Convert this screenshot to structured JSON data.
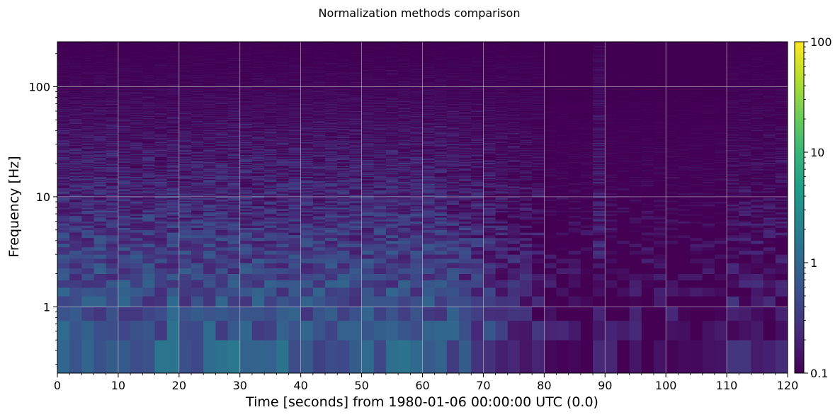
{
  "chart_data": {
    "type": "heatmap",
    "title": "Normalization methods comparison",
    "xlabel": "Time [seconds] from 1980-01-06 00:00:00 UTC (0.0)",
    "ylabel": "Frequency [Hz]",
    "xlim": [
      0,
      120
    ],
    "ylim": [
      0.25,
      256
    ],
    "yscale": "log",
    "x_ticks": [
      0,
      10,
      20,
      30,
      40,
      50,
      60,
      70,
      80,
      90,
      100,
      110,
      120
    ],
    "x_tick_labels": [
      "0",
      "10",
      "20",
      "30",
      "40",
      "50",
      "60",
      "70",
      "80",
      "90",
      "100",
      "110",
      "120"
    ],
    "y_ticks": [
      1,
      10,
      100
    ],
    "y_tick_labels": [
      "1",
      "10",
      "100"
    ],
    "grid": true,
    "colormap": "viridis",
    "color_scale": "log",
    "color_range": [
      0.1,
      100
    ],
    "colorbar_ticks": [
      0.1,
      1,
      10,
      100
    ],
    "colorbar_tick_labels": [
      "0.1",
      "1",
      "10",
      "100"
    ],
    "time_resolution_s": 2,
    "frequency_resolution_hz": 0.25,
    "notable_features": [
      "broadband low-value region from about 64 s to 120 s at low frequencies",
      "narrow vertical band of elevated values near 88-90 s spanning most frequencies"
    ]
  }
}
